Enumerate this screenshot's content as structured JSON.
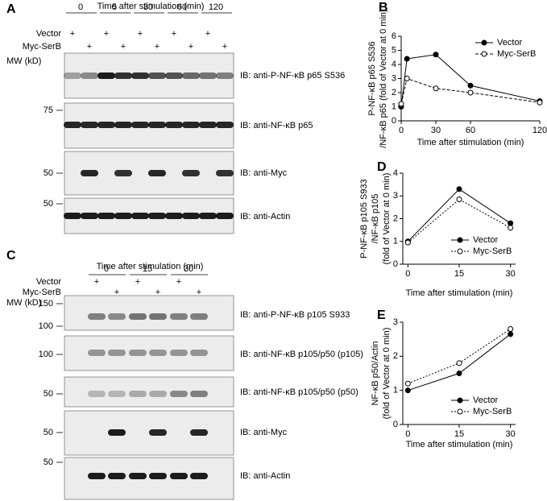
{
  "blots": {
    "A": {
      "letter": "A",
      "time_title": "Time after stimulation (min)",
      "times": [
        "0",
        "5",
        "30",
        "60",
        "120"
      ],
      "rows": [
        "Vector",
        "Myc-SerB"
      ],
      "sign": "+",
      "mw_title": "MW (kD)",
      "mw": [
        "75",
        "50",
        "50"
      ],
      "ib": [
        "IB: anti-P-NF-κB p65 S536",
        "IB: anti-NF-κB p65",
        "IB: anti-Myc",
        "IB: anti-Actin"
      ]
    },
    "C": {
      "letter": "C",
      "time_title": "Time after stimulation (min)",
      "times": [
        "0",
        "15",
        "30"
      ],
      "rows": [
        "Vector",
        "Myc-SerB"
      ],
      "sign": "+",
      "mw_title": "MW (kD)",
      "mw": [
        "150",
        "100",
        "100",
        "50",
        "50",
        "50"
      ],
      "ib": [
        "IB: anti-P-NF-κB p105 S933",
        "IB: anti-NF-κB p105/p50 (p105)",
        "IB: anti-NF-κB p105/p50 (p50)",
        "IB: anti-Myc",
        "IB: anti-Actin"
      ]
    }
  },
  "chart_data": [
    {
      "type": "line",
      "panel": "B",
      "x_label": "Time after stimulation (min)",
      "y_label": [
        "P-NF-κB p65 S536",
        "/NF-κB p65 (fold of Vector at 0 min)"
      ],
      "x": [
        0,
        5,
        30,
        60,
        120
      ],
      "series": [
        {
          "name": "Vector",
          "color": "#000000",
          "linestyle": "solid",
          "marker": "filled",
          "values": [
            1,
            4.4,
            4.7,
            2.5,
            1.4
          ]
        },
        {
          "name": "Myc-SerB",
          "color": "#000000",
          "linestyle": "dashed",
          "marker": "open",
          "values": [
            1.2,
            3.0,
            2.3,
            2.0,
            1.3
          ]
        }
      ],
      "xlim": [
        0,
        120
      ],
      "xticks": [
        0,
        30,
        60,
        120
      ],
      "ylim": [
        0,
        6
      ],
      "yticks": [
        0,
        1,
        2,
        3,
        4,
        5,
        6
      ],
      "legend": "upper right"
    },
    {
      "type": "line",
      "panel": "D",
      "x_label": "Time after stimulation (min)",
      "y_label": [
        "P-NF-κB p105 S933",
        "/NF-κB p105",
        "(fold of Vector at 0 min)"
      ],
      "x": [
        0,
        15,
        30
      ],
      "series": [
        {
          "name": "Vector",
          "color": "#000000",
          "linestyle": "solid",
          "marker": "filled",
          "values": [
            1,
            3.3,
            1.8
          ]
        },
        {
          "name": "Myc-SerB",
          "color": "#000000",
          "linestyle": "dotted",
          "marker": "open",
          "values": [
            0.95,
            2.85,
            1.6
          ]
        }
      ],
      "xlim": [
        -1.5,
        31.5
      ],
      "xticks": [
        0,
        15,
        30
      ],
      "ylim": [
        0,
        4
      ],
      "yticks": [
        0,
        1,
        2,
        3,
        4
      ],
      "legend": "lower right"
    },
    {
      "type": "line",
      "panel": "E",
      "x_label": "Time after stimulation (min)",
      "y_label": [
        "NF-κB p50/Actin",
        "(fold of Vector at 0 min)"
      ],
      "x": [
        0,
        15,
        30
      ],
      "series": [
        {
          "name": "Vector",
          "color": "#000000",
          "linestyle": "solid",
          "marker": "filled",
          "values": [
            1,
            1.5,
            2.65
          ]
        },
        {
          "name": "Myc-SerB",
          "color": "#000000",
          "linestyle": "dotted",
          "marker": "open",
          "values": [
            1.2,
            1.8,
            2.8
          ]
        }
      ],
      "xlim": [
        -1.5,
        31.5
      ],
      "xticks": [
        0,
        15,
        30
      ],
      "ylim": [
        0,
        3
      ],
      "yticks": [
        0,
        1,
        2,
        3
      ],
      "legend": "lower right"
    }
  ]
}
